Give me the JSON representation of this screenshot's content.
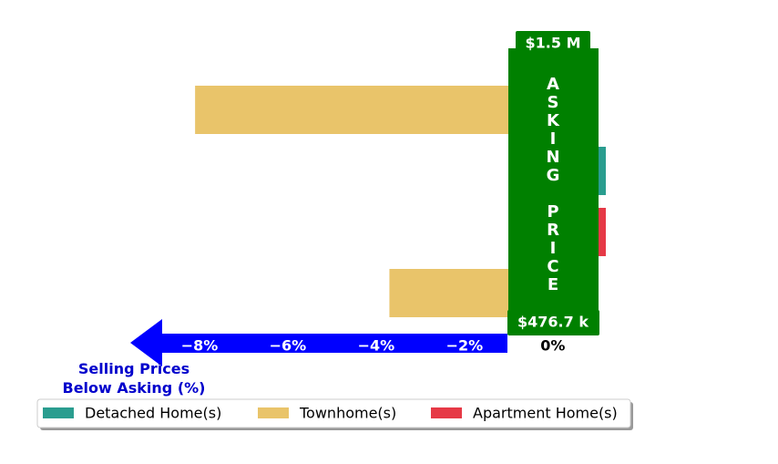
{
  "chart_data": {
    "type": "bar",
    "orientation": "horizontal",
    "categories": [
      null,
      null,
      null,
      null
    ],
    "series": [
      {
        "name": "Detached Home(s)",
        "color": "#2a9d8f",
        "values": [
          null,
          1.2,
          null,
          null
        ]
      },
      {
        "name": "Townhome(s)",
        "color": "#e9c46a",
        "values": [
          -8.1,
          null,
          null,
          -3.7
        ]
      },
      {
        "name": "Apartment Home(s)",
        "color": "#e63946",
        "values": [
          null,
          null,
          1.2,
          null
        ]
      }
    ],
    "xlim": [
      -9,
      1.2
    ],
    "xticks": [
      {
        "value": -8,
        "label": "−8%"
      },
      {
        "value": -6,
        "label": "−6%"
      },
      {
        "value": -4,
        "label": "−4%"
      },
      {
        "value": -2,
        "label": "−2%"
      },
      {
        "value": 0,
        "label": "0%"
      }
    ],
    "xlabel": "Selling Prices\nBelow Asking (%)",
    "annotations": [
      "$1.5 M",
      "ASKING PRICE",
      "$476.7 k"
    ],
    "legend": "lower left"
  }
}
